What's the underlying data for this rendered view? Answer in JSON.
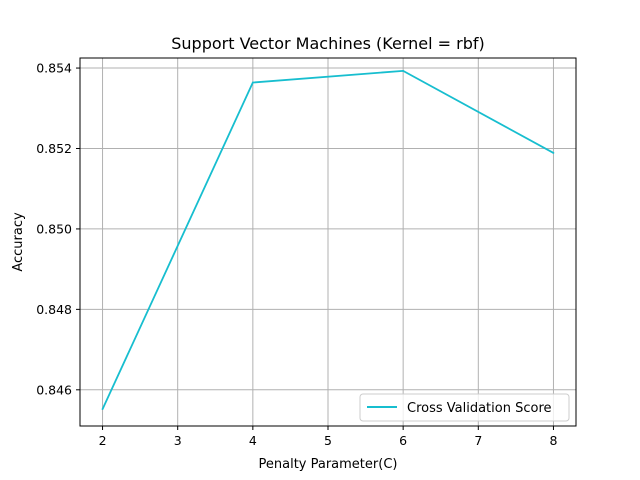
{
  "chart_data": {
    "type": "line",
    "title": "Support Vector Machines (Kernel = rbf)",
    "xlabel": "Penalty Parameter(C)",
    "ylabel": "Accuracy",
    "x": [
      2,
      4,
      6,
      8
    ],
    "series": [
      {
        "name": "Cross Validation Score",
        "values": [
          0.84552,
          0.85364,
          0.85393,
          0.85189
        ],
        "color": "#17becf"
      }
    ],
    "xlim": [
      1.7,
      8.3
    ],
    "ylim": [
      0.8451,
      0.85425
    ],
    "xticks": [
      2,
      3,
      4,
      5,
      6,
      7,
      8
    ],
    "xtick_labels": [
      "2",
      "3",
      "4",
      "5",
      "6",
      "7",
      "8"
    ],
    "yticks": [
      0.846,
      0.848,
      0.85,
      0.852,
      0.854
    ],
    "ytick_labels": [
      "0.846",
      "0.848",
      "0.850",
      "0.852",
      "0.854"
    ],
    "grid": true,
    "legend_position": "lower-right"
  }
}
